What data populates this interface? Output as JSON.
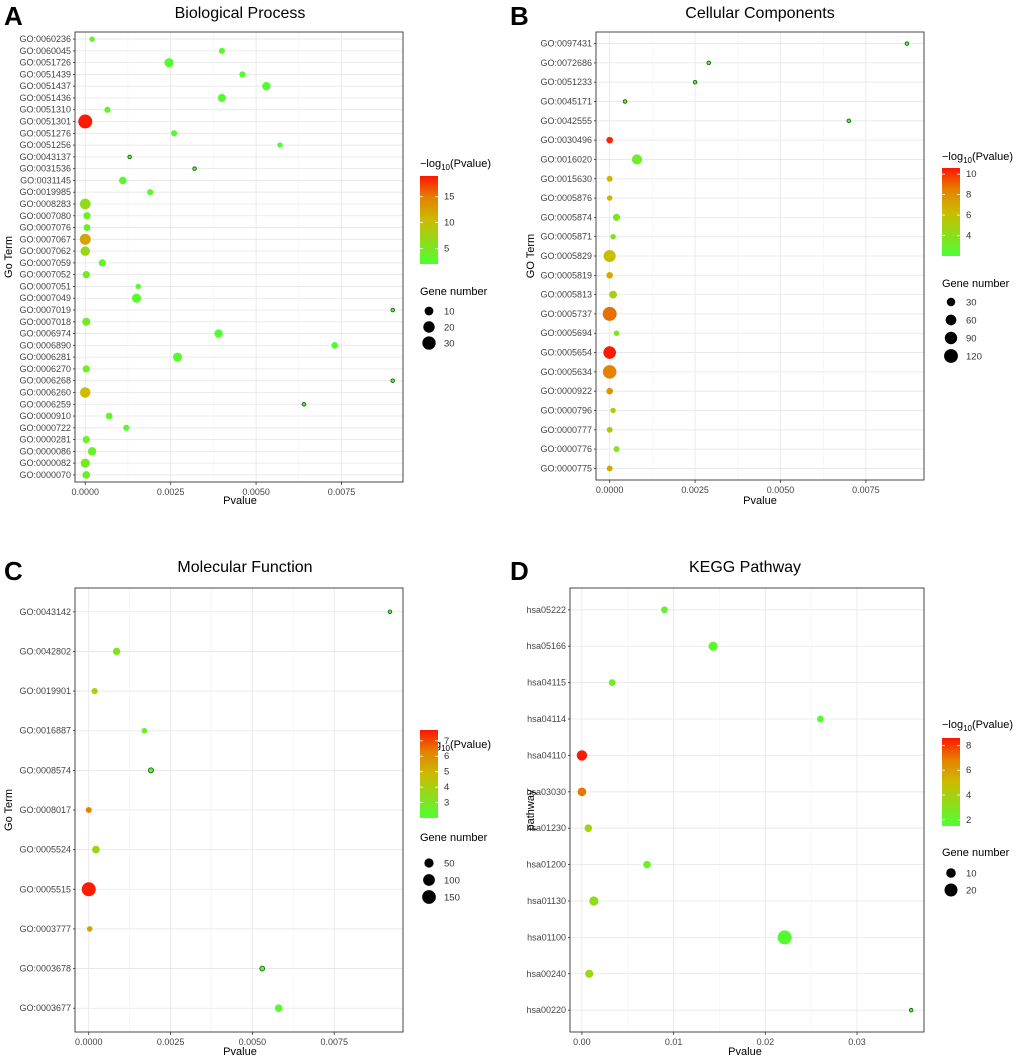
{
  "panel_letters": [
    "A",
    "B",
    "C",
    "D"
  ],
  "chart_data": [
    {
      "id": "bp",
      "type": "scatter",
      "panel": "A",
      "title": "Biological Process",
      "xlabel": "Pvalue",
      "ylabel": "Go Term",
      "xlim": [
        -0.0003,
        0.0093
      ],
      "xticks": [
        0,
        0.0025,
        0.005,
        0.0075
      ],
      "xtick_labels": [
        "0.0000",
        "0.0025",
        "0.0050",
        "0.0075"
      ],
      "categories": [
        "GO:0060236",
        "GO:0060045",
        "GO:0051726",
        "GO:0051439",
        "GO:0051437",
        "GO:0051436",
        "GO:0051310",
        "GO:0051301",
        "GO:0051276",
        "GO:0051256",
        "GO:0043137",
        "GO:0031536",
        "GO:0031145",
        "GO:0019985",
        "GO:0008283",
        "GO:0007080",
        "GO:0007076",
        "GO:0007067",
        "GO:0007062",
        "GO:0007059",
        "GO:0007052",
        "GO:0007051",
        "GO:0007049",
        "GO:0007019",
        "GO:0007018",
        "GO:0006974",
        "GO:0006890",
        "GO:0006281",
        "GO:0006270",
        "GO:0006268",
        "GO:0006260",
        "GO:0006259",
        "GO:0000910",
        "GO:0000722",
        "GO:0000281",
        "GO:0000086",
        "GO:0000082",
        "GO:0000070"
      ],
      "pvalues": [
        0.0002,
        0.004,
        0.00245,
        0.0046,
        0.0053,
        0.004,
        0.00065,
        0.0,
        0.0026,
        0.0057,
        0.0013,
        0.0032,
        0.0011,
        0.0019,
        0.0,
        5e-05,
        5e-05,
        0.0,
        0.0,
        0.0005,
        3e-05,
        0.00155,
        0.0015,
        0.009,
        3e-05,
        0.0039,
        0.0073,
        0.0027,
        3e-05,
        0.009,
        0.0,
        0.0064,
        0.0007,
        0.0012,
        3e-05,
        0.0002,
        0.0,
        3e-05
      ],
      "gene_number": [
        3,
        4,
        11,
        4,
        9,
        8,
        4,
        34,
        4,
        3,
        2,
        2,
        7,
        4,
        17,
        6,
        5,
        18,
        12,
        6,
        6,
        3,
        11,
        2,
        8,
        9,
        5,
        11,
        6,
        2,
        16,
        2,
        5,
        4,
        6,
        9,
        11,
        7
      ],
      "neg_log10_pvalue": [
        3.7,
        2.4,
        2.6,
        2.3,
        2.3,
        2.4,
        3.2,
        18.8,
        2.6,
        2.2,
        2.9,
        2.5,
        3.0,
        2.7,
        6.5,
        4.1,
        4.2,
        12.4,
        6.8,
        3.3,
        4.5,
        2.8,
        2.8,
        2.05,
        4.5,
        2.4,
        2.1,
        2.6,
        4.3,
        2.05,
        10.5,
        2.2,
        3.2,
        2.9,
        4.3,
        3.7,
        5.0,
        4.3
      ],
      "legend": {
        "color_title": "−log10(Pvalue)",
        "color_ticks": [
          "15",
          "10",
          "5"
        ],
        "color_tick_values": [
          15,
          10,
          5
        ],
        "color_range": [
          2,
          19
        ],
        "size_title": "Gene number",
        "size_ticks": [
          "10",
          "20",
          "30"
        ],
        "size_tick_values": [
          10,
          20,
          30
        ],
        "size_range": [
          2,
          34
        ]
      }
    },
    {
      "id": "cc",
      "type": "scatter",
      "panel": "B",
      "title": "Cellular Components",
      "xlabel": "Pvalue",
      "ylabel": "GO Term",
      "xlim": [
        -0.0004,
        0.0092
      ],
      "xticks": [
        0,
        0.0025,
        0.005,
        0.0075
      ],
      "xtick_labels": [
        "0.0000",
        "0.0025",
        "0.0050",
        "0.0075"
      ],
      "categories": [
        "GO:0097431",
        "GO:0072686",
        "GO:0051233",
        "GO:0045171",
        "GO:0042555",
        "GO:0030496",
        "GO:0016020",
        "GO:0015630",
        "GO:0005876",
        "GO:0005874",
        "GO:0005871",
        "GO:0005829",
        "GO:0005819",
        "GO:0005813",
        "GO:0005737",
        "GO:0005694",
        "GO:0005654",
        "GO:0005634",
        "GO:0000922",
        "GO:0000796",
        "GO:0000777",
        "GO:0000776",
        "GO:0000775"
      ],
      "pvalues": [
        0.0087,
        0.0029,
        0.0025,
        0.00045,
        0.007,
        0.0,
        0.0008,
        0.0,
        0.0,
        0.0002,
        0.0001,
        0.0,
        0.0,
        0.0001,
        0.0,
        0.0002,
        0.0,
        0.0,
        0.0,
        0.0001,
        0.0,
        0.0002,
        0.0
      ],
      "gene_number": [
        4,
        4,
        4,
        4,
        4,
        14,
        52,
        10,
        8,
        18,
        8,
        84,
        14,
        24,
        124,
        8,
        94,
        114,
        14,
        8,
        10,
        10,
        10
      ],
      "neg_log10_pvalue": [
        2.06,
        2.5,
        2.6,
        3.3,
        2.15,
        10.3,
        3.1,
        6.5,
        6.5,
        3.7,
        4.0,
        6.2,
        7.0,
        4.9,
        8.8,
        3.7,
        10.5,
        8.4,
        7.7,
        5.0,
        5.5,
        3.8,
        7.0
      ],
      "legend": {
        "color_title": "−log10(Pvalue)",
        "color_ticks": [
          "10",
          "8",
          "6",
          "4"
        ],
        "color_tick_values": [
          10,
          8,
          6,
          4
        ],
        "color_range": [
          2,
          10.6
        ],
        "size_title": "Gene number",
        "size_ticks": [
          "30",
          "60",
          "90",
          "120"
        ],
        "size_tick_values": [
          30,
          60,
          90,
          120
        ],
        "size_range": [
          4,
          124
        ]
      }
    },
    {
      "id": "mf",
      "type": "scatter",
      "panel": "C",
      "title": "Molecular Function",
      "xlabel": "Pvalue",
      "ylabel": "Go Term",
      "xlim": [
        -0.00042,
        0.0096
      ],
      "xticks": [
        0,
        0.0025,
        0.005,
        0.0075
      ],
      "xtick_labels": [
        "0.0000",
        "0.0025",
        "0.0050",
        "0.0075"
      ],
      "categories": [
        "GO:0043142",
        "GO:0042802",
        "GO:0019901",
        "GO:0016887",
        "GO:0008574",
        "GO:0008017",
        "GO:0005524",
        "GO:0005515",
        "GO:0003777",
        "GO:0003678",
        "GO:0003677"
      ],
      "pvalues": [
        0.0092,
        0.00085,
        0.00018,
        0.0017,
        0.0019,
        0.0,
        0.00022,
        0.0,
        3e-05,
        0.0053,
        0.0058
      ],
      "gene_number": [
        4,
        25,
        14,
        10,
        7,
        12,
        28,
        160,
        10,
        6,
        28
      ],
      "neg_log10_pvalue": [
        2.04,
        3.07,
        4.0,
        2.8,
        2.7,
        6.2,
        3.7,
        7.6,
        5.5,
        2.3,
        2.2
      ],
      "legend": {
        "color_title": "−log10(Pvalue)",
        "color_ticks": [
          "7",
          "6",
          "5",
          "4",
          "3"
        ],
        "color_tick_values": [
          7,
          6,
          5,
          4,
          3
        ],
        "color_range": [
          2,
          7.7
        ],
        "size_title": "Gene number",
        "size_ticks": [
          "50",
          "100",
          "150"
        ],
        "size_tick_values": [
          50,
          100,
          150
        ],
        "size_range": [
          4,
          160
        ]
      }
    },
    {
      "id": "kegg",
      "type": "scatter",
      "panel": "D",
      "title": "KEGG Pathway",
      "xlabel": "Pvalue",
      "ylabel": "pathway",
      "xlim": [
        -0.0013,
        0.0373
      ],
      "xticks": [
        0,
        0.01,
        0.02,
        0.03
      ],
      "xtick_labels": [
        "0.00",
        "0.01",
        "0.02",
        "0.03"
      ],
      "categories": [
        "hsa05222",
        "hsa05166",
        "hsa04115",
        "hsa04114",
        "hsa04110",
        "hsa03030",
        "hsa01230",
        "hsa01200",
        "hsa01130",
        "hsa01100",
        "hsa00240",
        "hsa00220"
      ],
      "pvalues": [
        0.009,
        0.0143,
        0.0033,
        0.026,
        0.0,
        0.0,
        0.0007,
        0.0071,
        0.0013,
        0.0221,
        0.0008,
        0.0359
      ],
      "gene_number": [
        5,
        9,
        5,
        5,
        12,
        8,
        6,
        6,
        9,
        24,
        7,
        3
      ],
      "neg_log10_pvalue": [
        2.05,
        1.85,
        2.5,
        1.6,
        8.5,
        7.0,
        4.0,
        2.2,
        3.3,
        1.7,
        3.7,
        1.5
      ],
      "legend": {
        "color_title": "−log10(Pvalue)",
        "color_ticks": [
          "8",
          "6",
          "4",
          "2"
        ],
        "color_tick_values": [
          8,
          6,
          4,
          2
        ],
        "color_range": [
          1.5,
          8.6
        ],
        "size_title": "Gene number",
        "size_ticks": [
          "10",
          "20"
        ],
        "size_tick_values": [
          10,
          20
        ],
        "size_range": [
          3,
          24
        ]
      }
    }
  ]
}
